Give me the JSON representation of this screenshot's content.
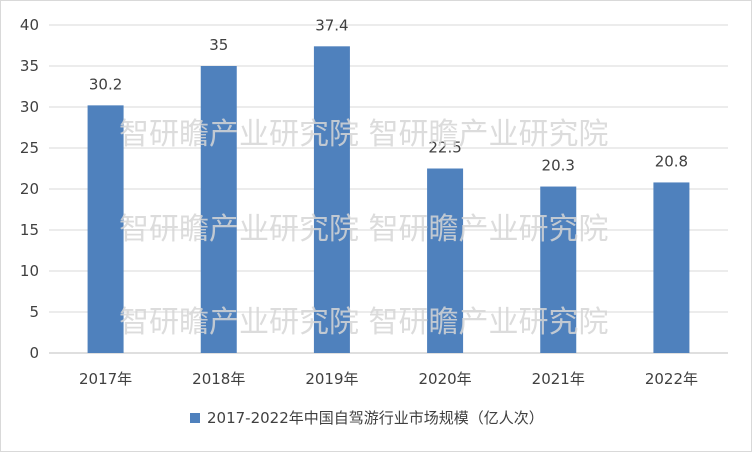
{
  "colors": {
    "bar": "#4F81BD",
    "grid": "#d9d9d9",
    "axis": "#bfbfbf",
    "text": "#404040",
    "watermark": "#d6d6d6"
  },
  "watermark_lines": [
    "智研瞻产业研究院  智研瞻产业研究院",
    "智研瞻产业研究院  智研瞻产业研究院",
    "智研瞻产业研究院  智研瞻产业研究院"
  ],
  "chart_data": {
    "type": "bar",
    "categories": [
      "2017年",
      "2018年",
      "2019年",
      "2020年",
      "2021年",
      "2022年"
    ],
    "series": [
      {
        "name": "2017-2022年中国自驾游行业市场规模（亿人次）",
        "values": [
          30.2,
          35,
          37.4,
          22.5,
          20.3,
          20.8
        ]
      }
    ],
    "data_labels": [
      "30.2",
      "35",
      "37.4",
      "22.5",
      "20.3",
      "20.8"
    ],
    "yticks": [
      "0",
      "5",
      "10",
      "15",
      "20",
      "25",
      "30",
      "35",
      "40"
    ],
    "ylim": [
      0,
      40
    ],
    "grid": true,
    "legend_position": "bottom"
  }
}
